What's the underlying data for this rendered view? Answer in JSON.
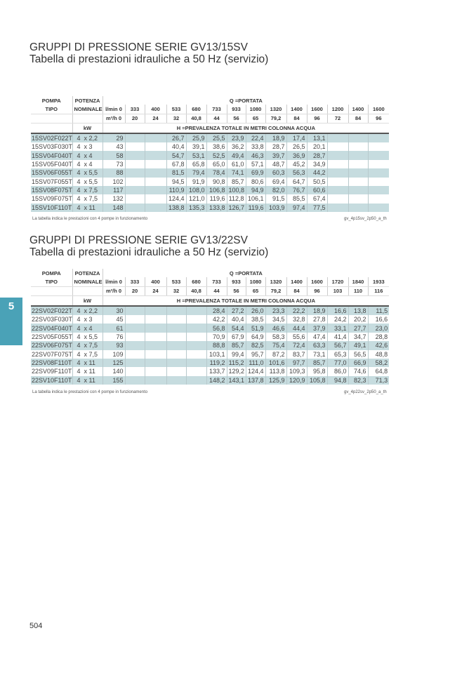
{
  "section_tab": "5",
  "page_number": "504",
  "colors": {
    "row_shade": "#c6dcdf",
    "tab": "#4aa2b7"
  },
  "tables": [
    {
      "title": "GRUPPI DI PRESSIONE SERIE GV13/15SV",
      "subtitle": "Tabella di prestazioni idrauliche a 50 Hz (servizio)",
      "h_pompa": "POMPA",
      "h_tipo": "TIPO",
      "h_potenza": "POTENZA",
      "h_nominale": "NOMINALE",
      "h_kw": "kW",
      "h_portata": "Q =PORTATA",
      "h_lmin": "l/min 0",
      "h_m3h": "m³/h 0",
      "h_prevalenza": "H =PREVALENZA  TOTALE  IN METRI  COLONNA  ACQUA",
      "lmin": [
        "333",
        "400",
        "533",
        "680",
        "733",
        "933",
        "1080",
        "1320",
        "1400",
        "1600",
        "1200",
        "1400",
        "1600"
      ],
      "m3h": [
        "20",
        "24",
        "32",
        "40,8",
        "44",
        "56",
        "65",
        "79,2",
        "84",
        "96",
        "72",
        "84",
        "96"
      ],
      "rows": [
        [
          "15SV02F022T",
          "4  x 2,2",
          "29",
          "",
          "",
          "26,7",
          "25,9",
          "25,5",
          "23,9",
          "22,4",
          "18,9",
          "17,4",
          "13,1",
          "",
          "",
          ""
        ],
        [
          "15SV03F030T",
          "4  x 3",
          "43",
          "",
          "",
          "40,4",
          "39,1",
          "38,6",
          "36,2",
          "33,8",
          "28,7",
          "26,5",
          "20,1",
          "",
          "",
          ""
        ],
        [
          "15SV04F040T",
          "4  x 4",
          "58",
          "",
          "",
          "54,7",
          "53,1",
          "52,5",
          "49,4",
          "46,3",
          "39,7",
          "36,9",
          "28,7",
          "",
          "",
          ""
        ],
        [
          "15SV05F040T",
          "4  x 4",
          "73",
          "",
          "",
          "67,8",
          "65,8",
          "65,0",
          "61,0",
          "57,1",
          "48,7",
          "45,2",
          "34,9",
          "",
          "",
          ""
        ],
        [
          "15SV06F055T",
          "4  x 5,5",
          "88",
          "",
          "",
          "81,5",
          "79,4",
          "78,4",
          "74,1",
          "69,9",
          "60,3",
          "56,3",
          "44,2",
          "",
          "",
          ""
        ],
        [
          "15SV07F055T",
          "4  x 5,5",
          "102",
          "",
          "",
          "94,5",
          "91,9",
          "90,8",
          "85,7",
          "80,6",
          "69,4",
          "64,7",
          "50,5",
          "",
          "",
          ""
        ],
        [
          "15SV08F075T",
          "4  x 7,5",
          "117",
          "",
          "",
          "110,9",
          "108,0",
          "106,8",
          "100,8",
          "94,9",
          "82,0",
          "76,7",
          "60,6",
          "",
          "",
          ""
        ],
        [
          "15SV09F075T",
          "4  x 7,5",
          "132",
          "",
          "",
          "124,4",
          "121,0",
          "119,6",
          "112,8",
          "106,1",
          "91,5",
          "85,5",
          "67,4",
          "",
          "",
          ""
        ],
        [
          "15SV10F110T",
          "4  x 11",
          "148",
          "",
          "",
          "138,8",
          "135,3",
          "133,8",
          "126,7",
          "119,6",
          "103,9",
          "97,4",
          "77,5",
          "",
          "",
          ""
        ]
      ],
      "note": "La  tabella  indica  le  prestazioni   con 4 pompe  in funzionamento",
      "code": "gv_4p15sv_2p50_a_th"
    },
    {
      "title": "GRUPPI DI PRESSIONE SERIE GV13/22SV",
      "subtitle": "Tabella di prestazioni idrauliche a 50 Hz (servizio)",
      "h_pompa": "POMPA",
      "h_tipo": "TIPO",
      "h_potenza": "POTENZA",
      "h_nominale": "NOMINALE",
      "h_kw": "kW",
      "h_portata": "Q =PORTATA",
      "h_lmin": "l/min 0",
      "h_m3h": "m³/h 0",
      "h_prevalenza": "H =PREVALENZA  TOTALE  IN METRI  COLONNA  ACQUA",
      "lmin": [
        "333",
        "400",
        "533",
        "680",
        "733",
        "933",
        "1080",
        "1320",
        "1400",
        "1600",
        "1720",
        "1840",
        "1933"
      ],
      "m3h": [
        "20",
        "24",
        "32",
        "40,8",
        "44",
        "56",
        "65",
        "79,2",
        "84",
        "96",
        "103",
        "110",
        "116"
      ],
      "rows": [
        [
          "22SV02F022T",
          "4  x 2,2",
          "30",
          "",
          "",
          "",
          "",
          "28,4",
          "27,2",
          "26,0",
          "23,3",
          "22,2",
          "18,9",
          "16,6",
          "13,8",
          "11,5"
        ],
        [
          "22SV03F030T",
          "4  x 3",
          "45",
          "",
          "",
          "",
          "",
          "42,2",
          "40,4",
          "38,5",
          "34,5",
          "32,8",
          "27,8",
          "24,2",
          "20,2",
          "16,6"
        ],
        [
          "22SV04F040T",
          "4  x 4",
          "61",
          "",
          "",
          "",
          "",
          "56,8",
          "54,4",
          "51,9",
          "46,6",
          "44,4",
          "37,9",
          "33,1",
          "27,7",
          "23,0"
        ],
        [
          "22SV05F055T",
          "4  x 5,5",
          "76",
          "",
          "",
          "",
          "",
          "70,9",
          "67,9",
          "64,9",
          "58,3",
          "55,6",
          "47,4",
          "41,4",
          "34,7",
          "28,8"
        ],
        [
          "22SV06F075T",
          "4  x 7,5",
          "93",
          "",
          "",
          "",
          "",
          "88,8",
          "85,7",
          "82,5",
          "75,4",
          "72,4",
          "63,3",
          "56,7",
          "49,1",
          "42,6"
        ],
        [
          "22SV07F075T",
          "4  x 7,5",
          "109",
          "",
          "",
          "",
          "",
          "103,1",
          "99,4",
          "95,7",
          "87,2",
          "83,7",
          "73,1",
          "65,3",
          "56,5",
          "48,8"
        ],
        [
          "22SV08F110T",
          "4  x 11",
          "125",
          "",
          "",
          "",
          "",
          "119,2",
          "115,2",
          "111,0",
          "101,6",
          "97,7",
          "85,7",
          "77,0",
          "66,9",
          "58,2"
        ],
        [
          "22SV09F110T",
          "4  x 11",
          "140",
          "",
          "",
          "",
          "",
          "133,7",
          "129,2",
          "124,4",
          "113,8",
          "109,3",
          "95,8",
          "86,0",
          "74,6",
          "64,8"
        ],
        [
          "22SV10F110T",
          "4  x 11",
          "155",
          "",
          "",
          "",
          "",
          "148,2",
          "143,1",
          "137,8",
          "125,9",
          "120,9",
          "105,8",
          "94,8",
          "82,3",
          "71,3"
        ]
      ],
      "note": "La  tabella  indica  le  prestazioni   con 4 pompe  in funzionamento",
      "code": "gv_4p22sv_2p50_a_th"
    }
  ]
}
